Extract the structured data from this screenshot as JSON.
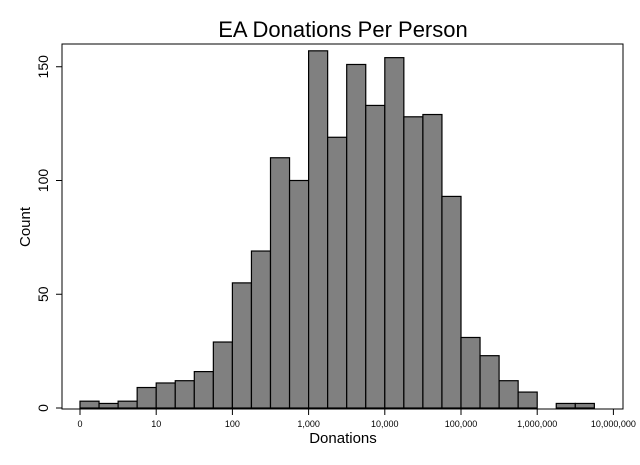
{
  "chart_data": {
    "type": "bar",
    "title": "EA Donations Per Person",
    "xlabel": "Donations",
    "ylabel": "Count",
    "x_scale": "log10",
    "bin_width_log10": 0.25,
    "x_ticks": [
      "0",
      "10",
      "100",
      "1,000",
      "10,000",
      "100,000",
      "1,000,000",
      "10,000,000"
    ],
    "y_ticks": [
      0,
      50,
      100,
      150
    ],
    "ylim": [
      0,
      160
    ],
    "grid": false,
    "bins_start_log10": [
      0,
      0.25,
      0.5,
      0.75,
      1,
      1.25,
      1.5,
      1.75,
      2,
      2.25,
      2.5,
      2.75,
      3,
      3.25,
      3.5,
      3.75,
      4,
      4.25,
      4.5,
      4.75,
      5,
      5.25,
      5.5,
      5.75,
      6.25,
      6.5
    ],
    "values": [
      3,
      2,
      3,
      9,
      11,
      12,
      16,
      29,
      55,
      69,
      110,
      100,
      157,
      119,
      151,
      133,
      154,
      128,
      129,
      93,
      31,
      23,
      12,
      7,
      2,
      2
    ],
    "bar_color": "#808080"
  }
}
